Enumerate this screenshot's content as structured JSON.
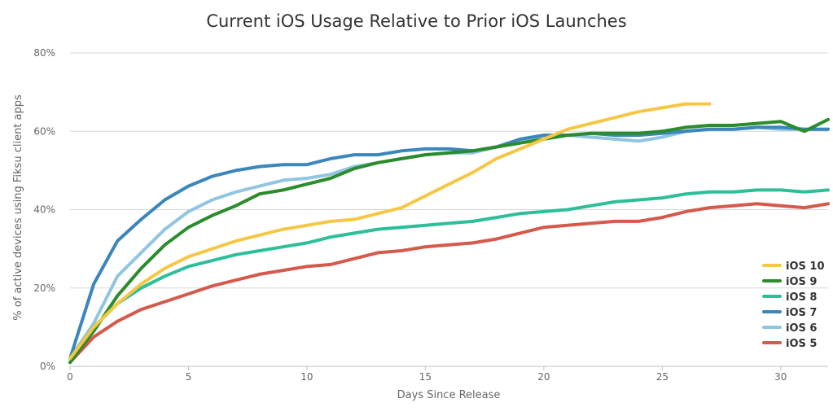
{
  "chart_data": {
    "type": "line",
    "title": "Current iOS Usage Relative to Prior iOS Launches",
    "xlabel": "Days Since Release",
    "ylabel": "% of active devices using Fiksu client apps",
    "xlim": [
      0,
      32
    ],
    "ylim": [
      0,
      80
    ],
    "xticks": [
      0,
      5,
      10,
      15,
      20,
      25,
      30
    ],
    "yticks": [
      0,
      20,
      40,
      60,
      80
    ],
    "ytick_labels": [
      "0%",
      "20%",
      "40%",
      "60%",
      "80%"
    ],
    "grid": "horizontal",
    "legend_position": "bottom-right",
    "series": [
      {
        "name": "iOS 10",
        "color": "#f6c744",
        "x": [
          0,
          1,
          2,
          3,
          4,
          5,
          6,
          7,
          8,
          9,
          10,
          11,
          12,
          13,
          14,
          15,
          16,
          17,
          18,
          19,
          20,
          21,
          22,
          23,
          24,
          25,
          26,
          27
        ],
        "values": [
          2,
          10,
          16,
          21,
          25,
          28,
          30,
          32,
          33.5,
          35,
          36,
          37,
          37.5,
          39,
          40.5,
          43.5,
          46.5,
          49.5,
          53,
          55.5,
          58,
          60.5,
          62,
          63.5,
          65,
          66,
          67,
          67
        ]
      },
      {
        "name": "iOS 9",
        "color": "#2b8c2b",
        "x": [
          0,
          1,
          2,
          3,
          4,
          5,
          6,
          7,
          8,
          9,
          10,
          11,
          12,
          13,
          14,
          15,
          16,
          17,
          18,
          19,
          20,
          21,
          22,
          23,
          24,
          25,
          26,
          27,
          28,
          29,
          30,
          31,
          32
        ],
        "values": [
          1,
          9,
          18,
          25,
          31,
          35.5,
          38.5,
          41,
          44,
          45,
          46.5,
          48,
          50.5,
          52,
          53,
          54,
          54.5,
          55,
          56,
          57,
          58,
          59,
          59.5,
          59.5,
          59.5,
          60,
          61,
          61.5,
          61.5,
          62,
          62.5,
          60,
          63
        ]
      },
      {
        "name": "iOS 8",
        "color": "#2dbf9a",
        "x": [
          0,
          1,
          2,
          3,
          4,
          5,
          6,
          7,
          8,
          9,
          10,
          11,
          12,
          13,
          14,
          15,
          16,
          17,
          18,
          19,
          20,
          21,
          22,
          23,
          24,
          25,
          26,
          27,
          28,
          29,
          30,
          31,
          32
        ],
        "values": [
          2,
          10,
          16,
          20,
          23,
          25.5,
          27,
          28.5,
          29.5,
          30.5,
          31.5,
          33,
          34,
          35,
          35.5,
          36,
          36.5,
          37,
          38,
          39,
          39.5,
          40,
          41,
          42,
          42.5,
          43,
          44,
          44.5,
          44.5,
          45,
          45,
          44.5,
          45
        ]
      },
      {
        "name": "iOS 7",
        "color": "#3b86ba",
        "x": [
          0,
          1,
          2,
          3,
          4,
          5,
          6,
          7,
          8,
          9,
          10,
          11,
          12,
          13,
          14,
          15,
          16,
          17,
          18,
          19,
          20,
          21,
          22,
          23,
          24,
          25,
          26,
          27,
          28,
          29,
          30,
          31,
          32
        ],
        "values": [
          2,
          21,
          32,
          37.5,
          42.5,
          46,
          48.5,
          50,
          51,
          51.5,
          51.5,
          53,
          54,
          54,
          55,
          55.5,
          55.5,
          55,
          56,
          58,
          59,
          59,
          59.5,
          59,
          59,
          59.5,
          60,
          60.5,
          60.5,
          61,
          61,
          60.5,
          60.5
        ]
      },
      {
        "name": "iOS 6",
        "color": "#91c5e0",
        "x": [
          0,
          1,
          2,
          3,
          4,
          5,
          6,
          7,
          8,
          9,
          10,
          11,
          12,
          13,
          14,
          15,
          16,
          17,
          18,
          19,
          20,
          21,
          22,
          23,
          24,
          25,
          26,
          27,
          28,
          29,
          30,
          31,
          32
        ],
        "values": [
          2,
          11,
          23,
          29,
          35,
          39.5,
          42.5,
          44.5,
          46,
          47.5,
          48,
          49,
          51,
          52,
          53,
          54,
          54.5,
          54.5,
          56,
          57.5,
          59,
          59,
          58.5,
          58,
          57.5,
          58.5,
          60,
          60.5,
          60.5,
          61,
          60.5,
          60.5,
          60.5
        ]
      },
      {
        "name": "iOS 5",
        "color": "#d45a4c",
        "x": [
          0,
          1,
          2,
          3,
          4,
          5,
          6,
          7,
          8,
          9,
          10,
          11,
          12,
          13,
          14,
          15,
          16,
          17,
          18,
          19,
          20,
          21,
          22,
          23,
          24,
          25,
          26,
          27,
          28,
          29,
          30,
          31,
          32
        ],
        "values": [
          1,
          7.5,
          11.5,
          14.5,
          16.5,
          18.5,
          20.5,
          22,
          23.5,
          24.5,
          25.5,
          26,
          27.5,
          29,
          29.5,
          30.5,
          31,
          31.5,
          32.5,
          34,
          35.5,
          36,
          36.5,
          37,
          37,
          38,
          39.5,
          40.5,
          41,
          41.5,
          41,
          40.5,
          41.5
        ]
      }
    ]
  }
}
